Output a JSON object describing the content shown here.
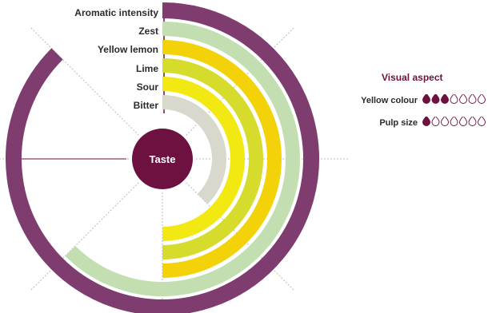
{
  "chart_data": {
    "type": "radial-bar",
    "center_label": "Taste",
    "scale_max": 7,
    "series": [
      {
        "name": "Aromatic intensity",
        "value": 7,
        "color": "#7f3d6f"
      },
      {
        "name": "Zest",
        "value": 5,
        "color": "#c3dfb2"
      },
      {
        "name": "Yellow lemon",
        "value": 4,
        "color": "#f4d20a"
      },
      {
        "name": "Lime",
        "value": 4,
        "color": "#d6dc2c"
      },
      {
        "name": "Sour",
        "value": 4,
        "color": "#f3e912"
      },
      {
        "name": "Bitter",
        "value": 3,
        "color": "#d8d8cc"
      }
    ],
    "visual_aspect": {
      "title": "Visual aspect",
      "items": [
        {
          "label": "Yellow colour",
          "filled": 3,
          "total": 7
        },
        {
          "label": "Pulp size",
          "filled": 1,
          "total": 7
        }
      ]
    }
  },
  "colors": {
    "accent": "#6d1140",
    "arc_outer": "#7f3d6f",
    "grid": "#b8b8b8"
  }
}
